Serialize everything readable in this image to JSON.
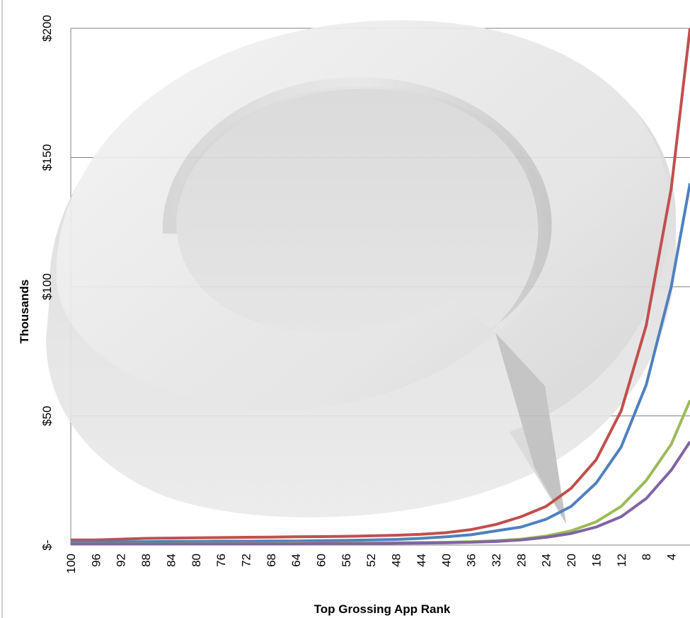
{
  "chart_data": {
    "type": "line",
    "title": "",
    "xlabel": "Top Grossing App Rank",
    "ylabel": "Thousands",
    "x_reversed": true,
    "xlim": [
      100,
      1
    ],
    "ylim": [
      0,
      200
    ],
    "grid": true,
    "legend": "none",
    "x_ticks": [
      "100",
      "96",
      "92",
      "88",
      "84",
      "80",
      "76",
      "72",
      "68",
      "64",
      "60",
      "56",
      "52",
      "48",
      "44",
      "40",
      "36",
      "32",
      "28",
      "24",
      "20",
      "16",
      "12",
      "8",
      "4"
    ],
    "y_ticks": [
      {
        "value": 0,
        "label": "$-"
      },
      {
        "value": 50,
        "label": "$50"
      },
      {
        "value": 100,
        "label": "$100"
      },
      {
        "value": 150,
        "label": "$150"
      },
      {
        "value": 200,
        "label": "$200"
      }
    ],
    "series": [
      {
        "color": "#c0504d",
        "x": [
          100,
          96,
          92,
          88,
          84,
          80,
          76,
          72,
          68,
          64,
          60,
          56,
          52,
          48,
          44,
          40,
          36,
          32,
          28,
          24,
          20,
          16,
          12,
          8,
          4,
          1
        ],
        "y": [
          2,
          2,
          2.3,
          2.6,
          2.7,
          2.8,
          2.9,
          3.0,
          3.1,
          3.2,
          3.3,
          3.4,
          3.6,
          3.8,
          4.2,
          4.8,
          6,
          8,
          11,
          15,
          22,
          33,
          52,
          85,
          138,
          200
        ]
      },
      {
        "color": "#4f81bd",
        "x": [
          100,
          96,
          92,
          88,
          84,
          80,
          76,
          72,
          68,
          64,
          60,
          56,
          52,
          48,
          44,
          40,
          36,
          32,
          28,
          24,
          20,
          16,
          12,
          8,
          4,
          1
        ],
        "y": [
          1.2,
          1.2,
          1.3,
          1.3,
          1.4,
          1.4,
          1.5,
          1.5,
          1.6,
          1.6,
          1.7,
          1.8,
          2.0,
          2.2,
          2.6,
          3.2,
          4,
          5.5,
          7,
          10,
          15,
          24,
          38,
          62,
          100,
          140
        ]
      },
      {
        "color": "#9bbb59",
        "x": [
          100,
          96,
          92,
          88,
          84,
          80,
          76,
          72,
          68,
          64,
          60,
          56,
          52,
          48,
          44,
          40,
          36,
          32,
          28,
          24,
          20,
          16,
          12,
          8,
          4,
          1
        ],
        "y": [
          0.5,
          0.5,
          0.5,
          0.5,
          0.5,
          0.6,
          0.6,
          0.6,
          0.6,
          0.7,
          0.7,
          0.8,
          0.8,
          0.9,
          1.0,
          1.1,
          1.3,
          1.7,
          2.3,
          3.5,
          5.5,
          9,
          15,
          25,
          39,
          56
        ]
      },
      {
        "color": "#8064a2",
        "x": [
          100,
          96,
          92,
          88,
          84,
          80,
          76,
          72,
          68,
          64,
          60,
          56,
          52,
          48,
          44,
          40,
          36,
          32,
          28,
          24,
          20,
          16,
          12,
          8,
          4,
          1
        ],
        "y": [
          0.4,
          0.4,
          0.4,
          0.4,
          0.4,
          0.5,
          0.5,
          0.5,
          0.5,
          0.5,
          0.6,
          0.6,
          0.6,
          0.7,
          0.8,
          0.9,
          1.1,
          1.4,
          2.0,
          3.0,
          4.5,
          7,
          11,
          18,
          29,
          40
        ]
      }
    ]
  },
  "icons": {
    "watermark": "circular-arrow-watermark-icon"
  }
}
